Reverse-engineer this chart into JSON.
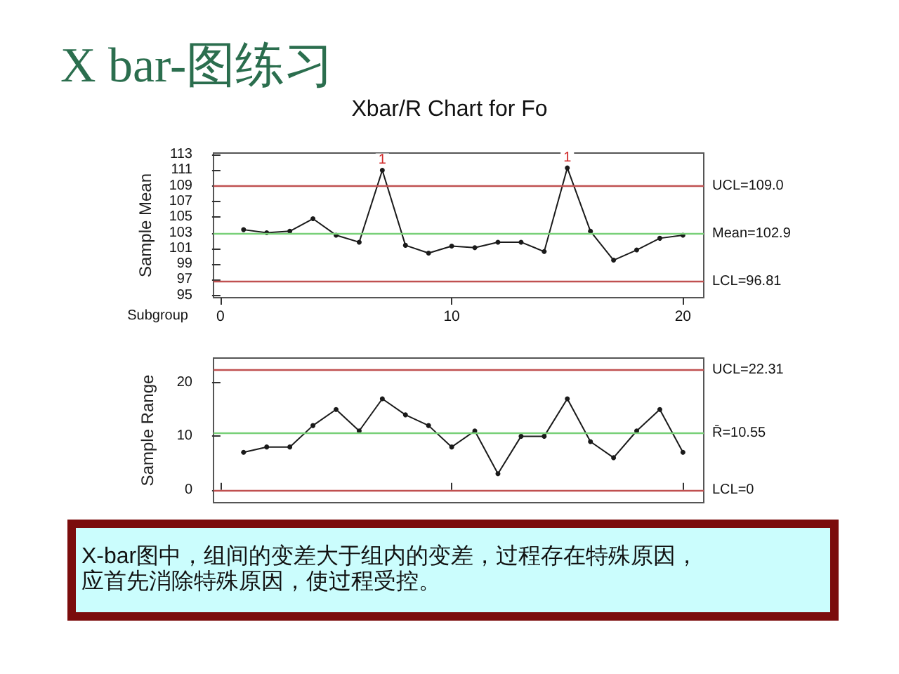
{
  "chart_data": [
    {
      "type": "line",
      "title": "X bar-图练习",
      "subtitle": "Xbar/R Chart for Fo",
      "xlabel": "Subgroup",
      "ylabel": "Sample Mean",
      "x": [
        1,
        2,
        3,
        4,
        5,
        6,
        7,
        8,
        9,
        10,
        11,
        12,
        13,
        14,
        15,
        16,
        17,
        18,
        19,
        20
      ],
      "series": [
        {
          "color": "#1a1a1a",
          "values": [
            103.4,
            103.0,
            103.2,
            104.8,
            102.7,
            101.8,
            111.0,
            101.4,
            100.4,
            101.3,
            101.1,
            101.8,
            101.8,
            100.6,
            111.3,
            103.2,
            99.5,
            100.8,
            102.3,
            102.7
          ]
        }
      ],
      "xlim": [
        -0.3,
        20.9
      ],
      "xticks": [
        0,
        10,
        20
      ],
      "ylim": [
        94.7,
        113.2
      ],
      "yticks": [
        95,
        97,
        99,
        101,
        103,
        105,
        107,
        109,
        111,
        113
      ],
      "marker": "circle",
      "ref_lines": [
        {
          "axis": "y",
          "value": 109.0,
          "label": "UCL=109.0",
          "color": "#c05050"
        },
        {
          "axis": "y",
          "value": 102.9,
          "label": "Mean=102.9",
          "color": "#78d078"
        },
        {
          "axis": "y",
          "value": 96.81,
          "label": "LCL=96.81",
          "color": "#c05050"
        }
      ],
      "annotations": [
        {
          "text": "1",
          "x": 7,
          "y": 111.0
        },
        {
          "text": "1",
          "x": 15,
          "y": 111.3
        }
      ]
    },
    {
      "type": "line",
      "ylabel": "Sample Range",
      "x": [
        1,
        2,
        3,
        4,
        5,
        6,
        7,
        8,
        9,
        10,
        11,
        12,
        13,
        14,
        15,
        16,
        17,
        18,
        19,
        20
      ],
      "series": [
        {
          "color": "#1a1a1a",
          "values": [
            7,
            8,
            8,
            12,
            15,
            11,
            17,
            14,
            12,
            8,
            11,
            3,
            10,
            10,
            17,
            9,
            6,
            11,
            15,
            7
          ]
        }
      ],
      "xlim": [
        -0.3,
        20.9
      ],
      "xticks": [
        0,
        10,
        20
      ],
      "ylim": [
        -2.4,
        24.6
      ],
      "yticks": [
        0,
        10,
        20
      ],
      "tick_labels": "y",
      "marker": "circle",
      "ref_lines": [
        {
          "axis": "y",
          "value": 22.31,
          "label": "UCL=22.31",
          "color": "#c05050"
        },
        {
          "axis": "y",
          "value": 10.55,
          "label": "R̄=10.55",
          "color": "#78d078"
        },
        {
          "axis": "y",
          "value": 0,
          "label": "LCL=0",
          "color": "#c05050"
        }
      ],
      "annotations": [
        "X-bar图中，组间的变差大于组内的变差，过程存在特殊原因，",
        "应首先消除特殊原因，使过程受控。"
      ]
    }
  ]
}
